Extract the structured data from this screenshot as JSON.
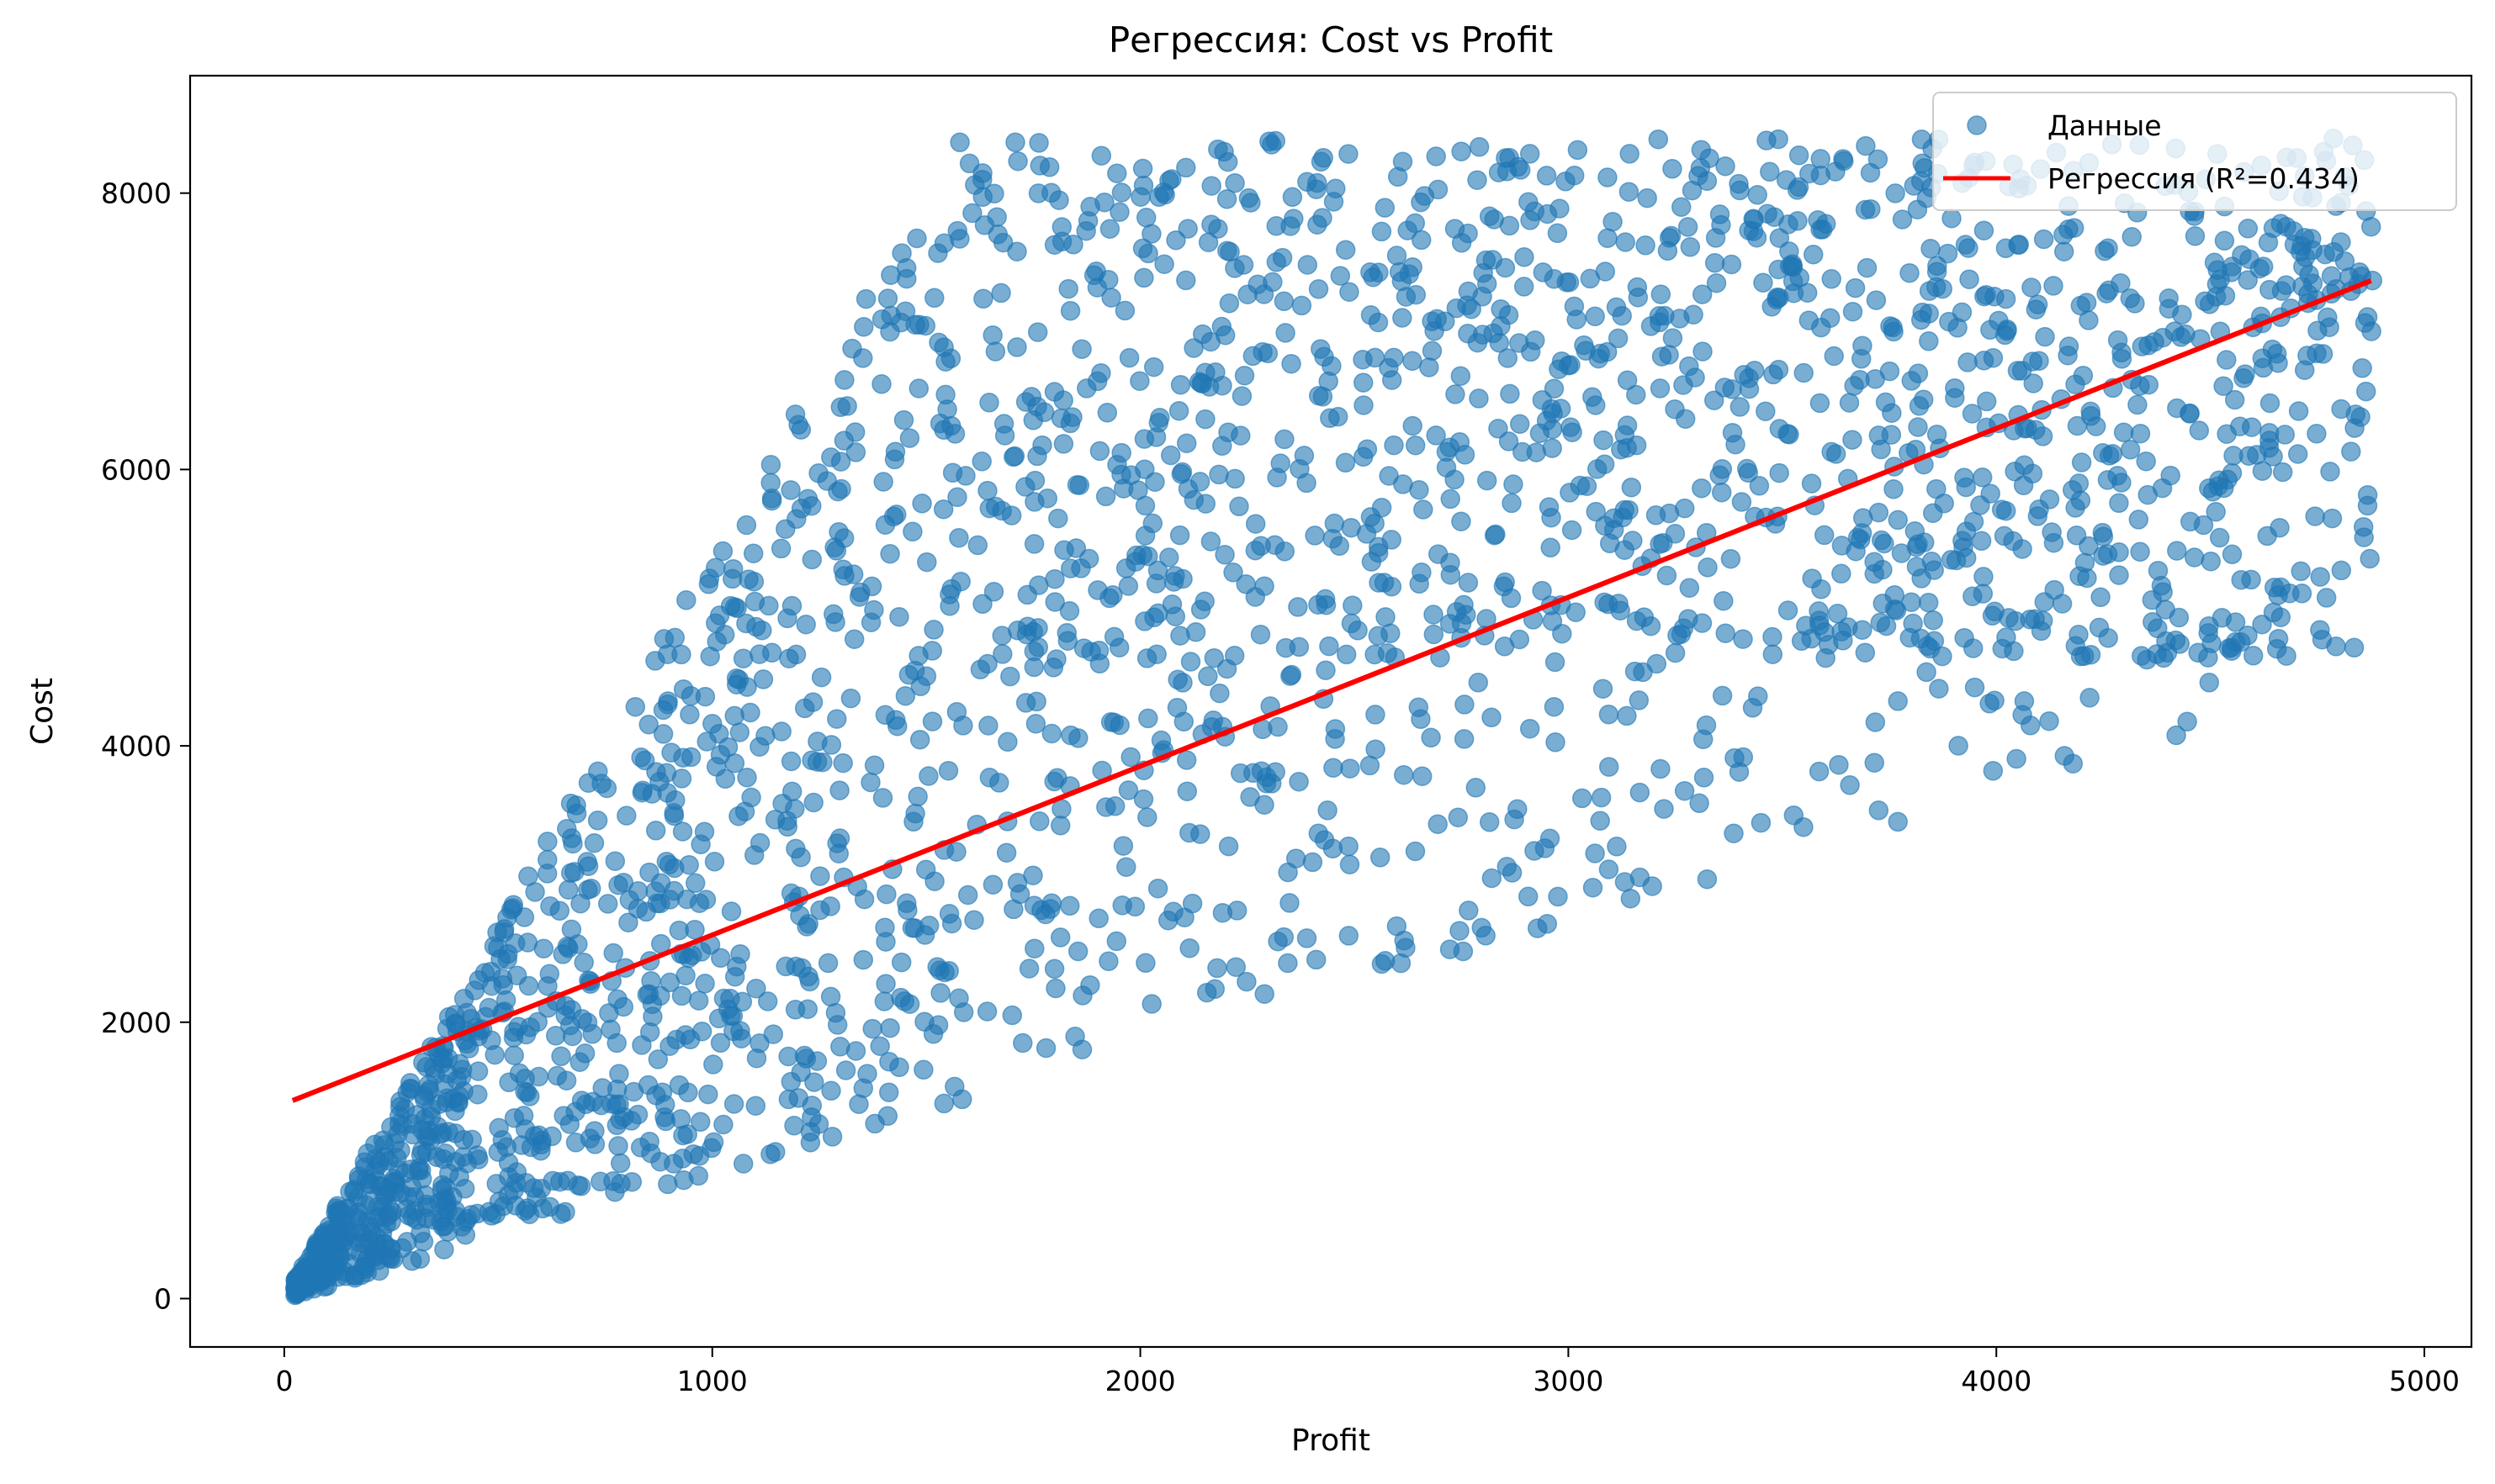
{
  "chart_data": {
    "type": "scatter",
    "title": "Регрессия: Cost vs Profit",
    "xlabel": "Profit",
    "ylabel": "Cost",
    "xlim": [
      -220,
      5110
    ],
    "ylim": [
      -350,
      8850
    ],
    "xticks": [
      0,
      1000,
      2000,
      3000,
      4000,
      5000
    ],
    "yticks": [
      0,
      2000,
      4000,
      6000,
      8000
    ],
    "grid": false,
    "legend_position": "top-right",
    "series": [
      {
        "name": "Данные",
        "kind": "scatter",
        "color": "#1f77b4",
        "opacity": 0.6,
        "point_count": 2500,
        "distribution": {
          "x_min": 25,
          "x_max": 4880,
          "y_over_x_min": 0.9,
          "y_over_x_max": 5.4,
          "y_max": 8400
        }
      },
      {
        "name": "Регрессия (R²=0.434)",
        "kind": "line",
        "color": "#ff0000",
        "x": [
          25,
          4870
        ],
        "y": [
          1440,
          7360
        ]
      }
    ]
  }
}
